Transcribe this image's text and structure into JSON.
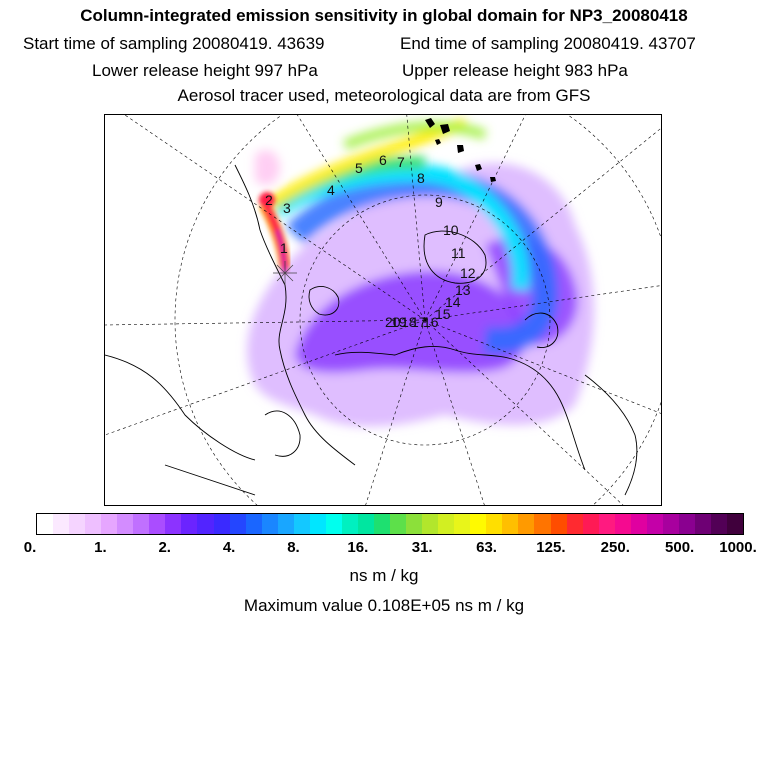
{
  "header": {
    "title": "Column-integrated emission sensitivity in global domain for NP3_20080418",
    "start_label": "Start time of sampling 20080419. 43639",
    "end_label": "End time of sampling 20080419. 43707",
    "lower_label": "Lower release height  997 hPa",
    "upper_label": "Upper release height  983 hPa",
    "aerosol_note": "Aerosol tracer used, meteorological data are from GFS"
  },
  "map": {
    "track_labels": [
      "1",
      "2",
      "3",
      "4",
      "5",
      "6",
      "7",
      "8",
      "9",
      "10",
      "11",
      "12",
      "13",
      "14",
      "15",
      "16",
      "17",
      "18",
      "19",
      "20"
    ],
    "colors": {
      "low": "#b98cf0",
      "purple": "#7f33ff",
      "blue": "#2a6cff",
      "cyan": "#00e6ff",
      "green": "#3de070",
      "yellow": "#ffee00",
      "orange": "#ff6a00",
      "red": "#ff1a4a",
      "magenta": "#d400aa"
    }
  },
  "colorbar": {
    "colors": [
      "#ffffff",
      "#fbe9ff",
      "#f5d4ff",
      "#eebfff",
      "#e6a6ff",
      "#d38cff",
      "#c070ff",
      "#aa4dff",
      "#8c33ff",
      "#6b24ff",
      "#5224ff",
      "#3a2aff",
      "#2446ff",
      "#1a66ff",
      "#1a86ff",
      "#19a6ff",
      "#14c8ff",
      "#00e6ff",
      "#00ffee",
      "#00f0c0",
      "#00e6a0",
      "#1ee070",
      "#5de04a",
      "#8ce03a",
      "#b2e62c",
      "#d2ef22",
      "#e8f51a",
      "#fffa00",
      "#ffdf00",
      "#ffbf00",
      "#ff9a00",
      "#ff7400",
      "#ff4d00",
      "#ff2a30",
      "#ff1a55",
      "#ff1a80",
      "#f50a90",
      "#e000a0",
      "#c400a8",
      "#a8009e",
      "#8a0090",
      "#6e0074",
      "#520056",
      "#40003c"
    ],
    "ticks": [
      "0.",
      "1.",
      "2.",
      "4.",
      "8.",
      "16.",
      "31.",
      "63.",
      "125.",
      "250.",
      "500.",
      "1000."
    ],
    "units": "ns m / kg"
  },
  "max_value_label": "Maximum value  0.108E+05 ns m / kg"
}
